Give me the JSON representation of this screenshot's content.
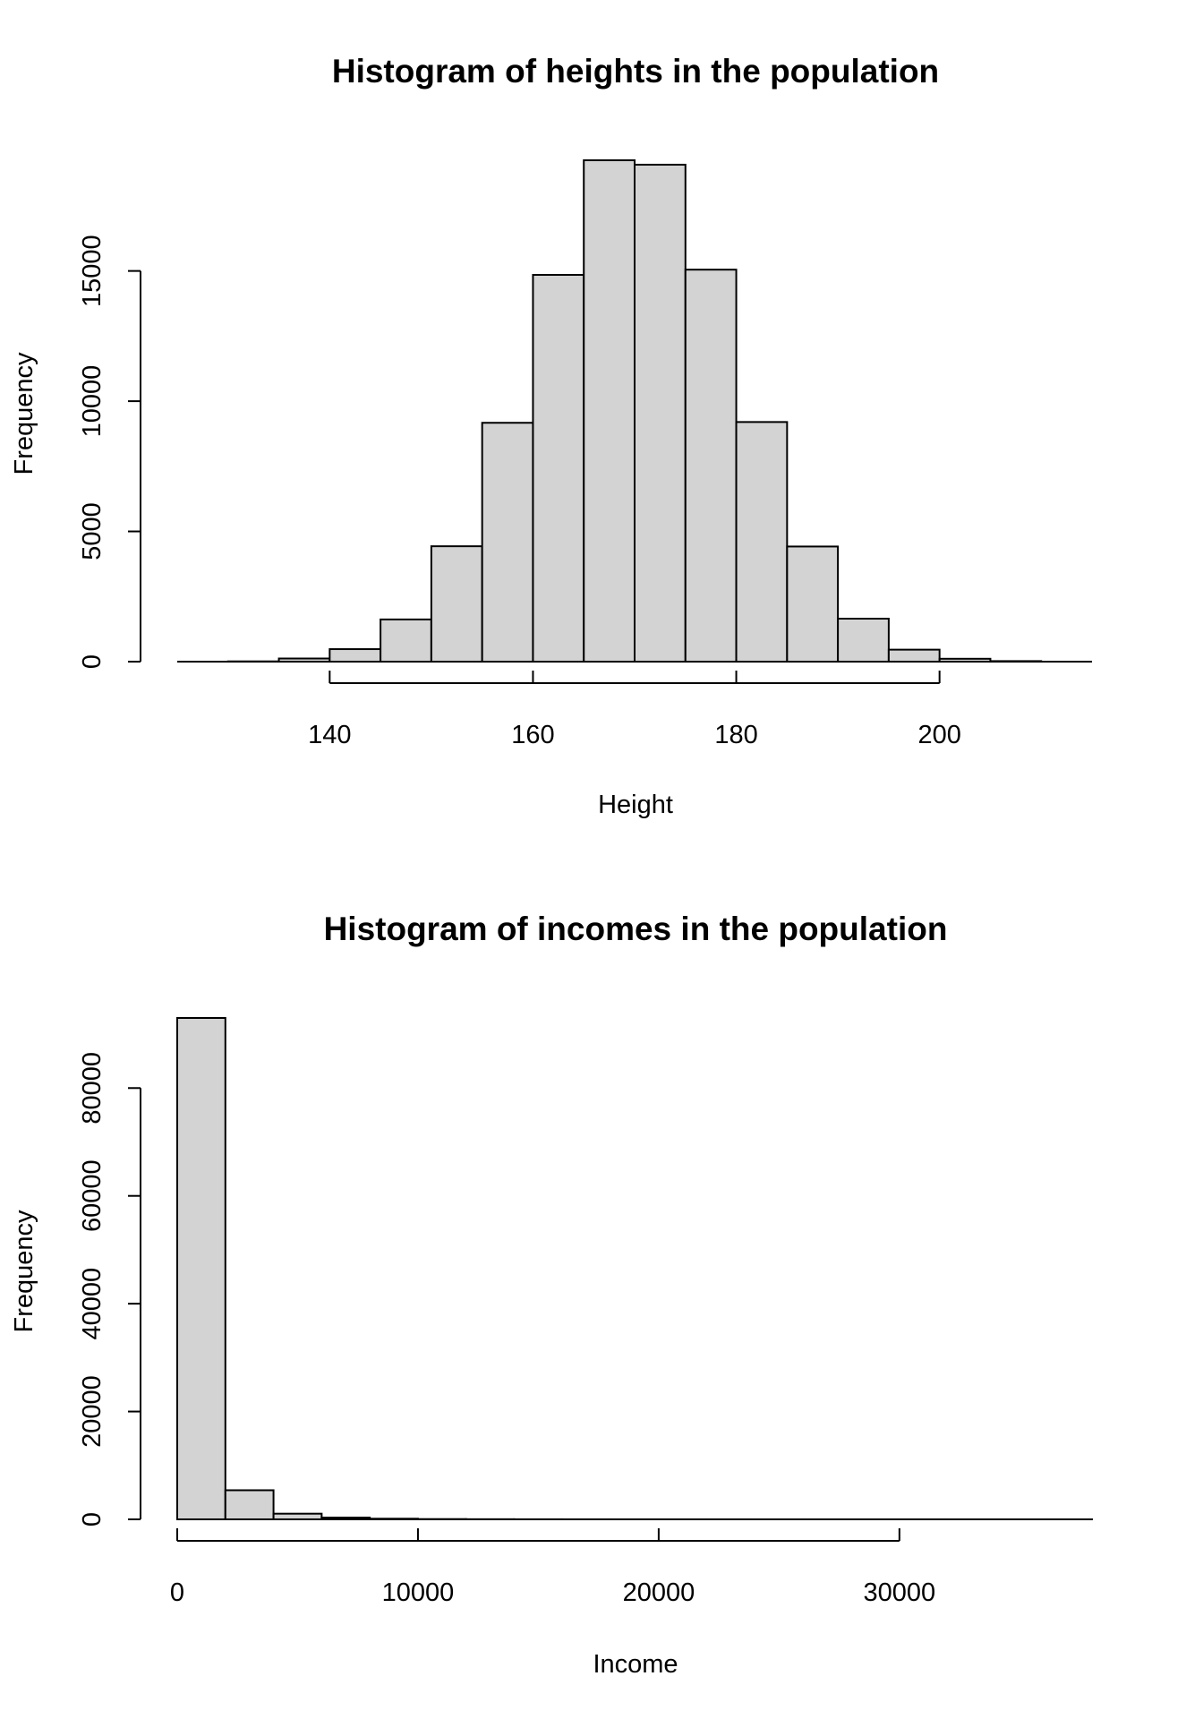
{
  "chart_data": [
    {
      "type": "bar",
      "title": "Histogram of heights in the population",
      "xlabel": "Height",
      "ylabel": "Frequency",
      "bar_color": "#d3d3d3",
      "bins_start": [
        125,
        130,
        135,
        140,
        145,
        150,
        155,
        160,
        165,
        170,
        175,
        180,
        185,
        190,
        195,
        200,
        205,
        210
      ],
      "bin_width": 5,
      "values": [
        0,
        10,
        120,
        480,
        1620,
        4430,
        9170,
        14850,
        19250,
        19080,
        15050,
        9200,
        4420,
        1650,
        460,
        110,
        20,
        0
      ],
      "xlim": [
        125,
        215
      ],
      "ylim": [
        0,
        19250
      ],
      "x_ticks": [
        "140",
        "160",
        "180",
        "200"
      ],
      "y_ticks": [
        "0",
        "5000",
        "10000",
        "15000"
      ]
    },
    {
      "type": "bar",
      "title": "Histogram of incomes in the population",
      "xlabel": "Income",
      "ylabel": "Frequency",
      "bar_color": "#d3d3d3",
      "bins_start": [
        0,
        2000,
        4000,
        6000,
        8000,
        10000,
        12000,
        14000,
        16000,
        18000,
        20000,
        22000,
        24000,
        26000,
        28000,
        30000,
        32000,
        34000,
        36000
      ],
      "bin_width": 2000,
      "values": [
        93000,
        5400,
        1050,
        330,
        120,
        50,
        25,
        12,
        6,
        4,
        3,
        2,
        1,
        1,
        1,
        1,
        0,
        0,
        1
      ],
      "xlim": [
        0,
        38000
      ],
      "ylim": [
        0,
        93000
      ],
      "x_ticks": [
        "0",
        "10000",
        "20000",
        "30000"
      ],
      "y_ticks": [
        "0",
        "20000",
        "40000",
        "60000",
        "80000"
      ]
    }
  ]
}
